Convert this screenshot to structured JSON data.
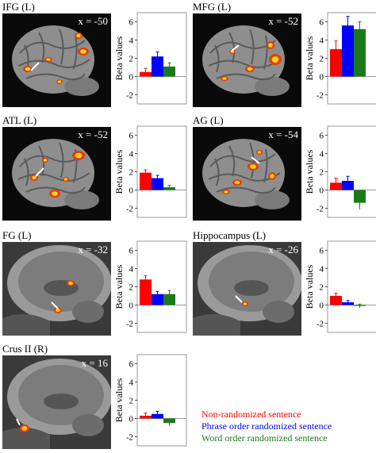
{
  "panels": [
    {
      "title": "IFG (L)",
      "x_label": "x = -50",
      "brain": "lateral"
    },
    {
      "title": "MFG (L)",
      "x_label": "x = -52",
      "brain": "lateral"
    },
    {
      "title": "ATL (L)",
      "x_label": "x = -52",
      "brain": "lateral"
    },
    {
      "title": "AG (L)",
      "x_label": "x = -54",
      "brain": "lateral"
    },
    {
      "title": "FG (L)",
      "x_label": "x = -32",
      "brain": "medial"
    },
    {
      "title": "Hippocampus (L)",
      "x_label": "x = -26",
      "brain": "medial"
    },
    {
      "title": "Crus II (R)",
      "x_label": "x = 16",
      "brain": "medial"
    }
  ],
  "colors": {
    "red": "#ff0000",
    "blue": "#0000ff",
    "green": "#1a7a1a"
  },
  "legend": [
    "Non-randomized sentence",
    "Phrase order randomized sentence",
    "Word order randomized sentence"
  ],
  "chart_data": [
    {
      "type": "bar",
      "title": "IFG (L)",
      "ylabel": "Beta values",
      "ylim": [
        -3,
        7
      ],
      "yticks": [
        -2,
        0,
        2,
        4,
        6
      ],
      "series": [
        {
          "name": "Non-randomized sentence",
          "values": [
            0.5
          ],
          "err": [
            0.4
          ]
        },
        {
          "name": "Phrase order randomized sentence",
          "values": [
            2.2
          ],
          "err": [
            0.5
          ]
        },
        {
          "name": "Word order randomized sentence",
          "values": [
            1.1
          ],
          "err": [
            0.4
          ]
        }
      ]
    },
    {
      "type": "bar",
      "title": "MFG (L)",
      "ylabel": "Beta values",
      "ylim": [
        -3,
        7
      ],
      "yticks": [
        -2,
        0,
        2,
        4,
        6
      ],
      "series": [
        {
          "name": "Non-randomized sentence",
          "values": [
            3.0
          ],
          "err": [
            0.9
          ]
        },
        {
          "name": "Phrase order randomized sentence",
          "values": [
            5.6
          ],
          "err": [
            1.0
          ]
        },
        {
          "name": "Word order randomized sentence",
          "values": [
            5.2
          ],
          "err": [
            0.8
          ]
        }
      ]
    },
    {
      "type": "bar",
      "title": "ATL (L)",
      "ylabel": "Beta values",
      "ylim": [
        -3,
        7
      ],
      "yticks": [
        -2,
        0,
        2,
        4,
        6
      ],
      "series": [
        {
          "name": "Non-randomized sentence",
          "values": [
            1.9
          ],
          "err": [
            0.3
          ]
        },
        {
          "name": "Phrase order randomized sentence",
          "values": [
            1.3
          ],
          "err": [
            0.3
          ]
        },
        {
          "name": "Word order randomized sentence",
          "values": [
            0.3
          ],
          "err": [
            0.2
          ]
        }
      ]
    },
    {
      "type": "bar",
      "title": "AG (L)",
      "ylabel": "Beta values",
      "ylim": [
        -3,
        7
      ],
      "yticks": [
        -2,
        0,
        2,
        4,
        6
      ],
      "series": [
        {
          "name": "Non-randomized sentence",
          "values": [
            0.8
          ],
          "err": [
            0.5
          ]
        },
        {
          "name": "Phrase order randomized sentence",
          "values": [
            1.0
          ],
          "err": [
            0.5
          ]
        },
        {
          "name": "Word order randomized sentence",
          "values": [
            -1.4
          ],
          "err": [
            0.7
          ]
        }
      ]
    },
    {
      "type": "bar",
      "title": "FG (L)",
      "ylabel": "Beta values",
      "ylim": [
        -3,
        7
      ],
      "yticks": [
        -2,
        0,
        2,
        4,
        6
      ],
      "series": [
        {
          "name": "Non-randomized sentence",
          "values": [
            2.8
          ],
          "err": [
            0.4
          ]
        },
        {
          "name": "Phrase order randomized sentence",
          "values": [
            1.2
          ],
          "err": [
            0.3
          ]
        },
        {
          "name": "Word order randomized sentence",
          "values": [
            1.2
          ],
          "err": [
            0.4
          ]
        }
      ]
    },
    {
      "type": "bar",
      "title": "Hippocampus (L)",
      "ylabel": "Beta values",
      "ylim": [
        -3,
        7
      ],
      "yticks": [
        -2,
        0,
        2,
        4,
        6
      ],
      "series": [
        {
          "name": "Non-randomized sentence",
          "values": [
            1.0
          ],
          "err": [
            0.3
          ]
        },
        {
          "name": "Phrase order randomized sentence",
          "values": [
            0.3
          ],
          "err": [
            0.2
          ]
        },
        {
          "name": "Word order randomized sentence",
          "values": [
            -0.1
          ],
          "err": [
            0.2
          ]
        }
      ]
    },
    {
      "type": "bar",
      "title": "Crus II (R)",
      "ylabel": "Beta values",
      "ylim": [
        -3,
        7
      ],
      "yticks": [
        -2,
        0,
        2,
        4,
        6
      ],
      "series": [
        {
          "name": "Non-randomized sentence",
          "values": [
            0.3
          ],
          "err": [
            0.3
          ]
        },
        {
          "name": "Phrase order randomized sentence",
          "values": [
            0.5
          ],
          "err": [
            0.3
          ]
        },
        {
          "name": "Word order randomized sentence",
          "values": [
            -0.5
          ],
          "err": [
            0.3
          ]
        }
      ]
    }
  ]
}
